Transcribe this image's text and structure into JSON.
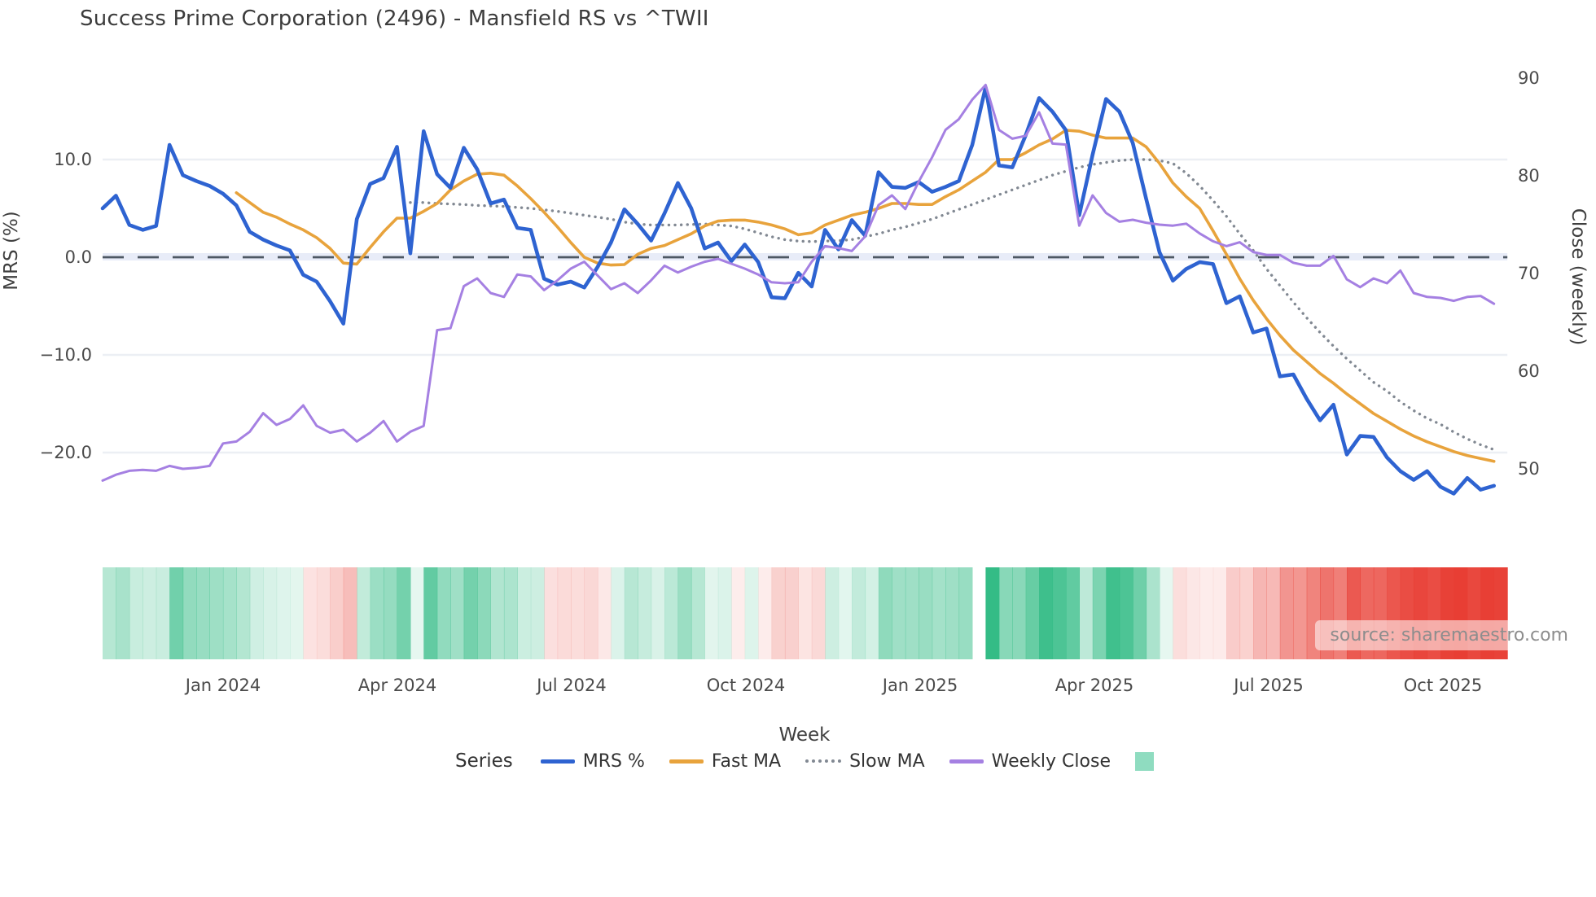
{
  "title": "Success Prime Corporation (2496) - Mansfield RS vs ^TWII",
  "left_axis": {
    "label": "MRS (%)",
    "ticks": [
      "10.0",
      "0.0",
      "−10.0",
      "−20.0"
    ],
    "tick_values": [
      10,
      0,
      -10,
      -20
    ]
  },
  "right_axis": {
    "label": "Close (weekly)",
    "ticks": [
      "90",
      "80",
      "70",
      "60",
      "50"
    ],
    "tick_values": [
      90,
      80,
      70,
      60,
      50
    ]
  },
  "x_axis": {
    "label": "Week",
    "ticks": [
      "Jan 2024",
      "Apr 2024",
      "Jul 2024",
      "Oct 2024",
      "Jan 2025",
      "Apr 2025",
      "Jul 2025",
      "Oct 2025"
    ]
  },
  "legend": {
    "title": "Series",
    "heatmap_swatch_color": "#8fdcc0"
  },
  "source": "source: sharemaestro.com",
  "colors": {
    "mrs": "#2e63d1",
    "fast_ma": "#e8a33c",
    "slow_ma": "#818892",
    "weekly_close": "#a580e2",
    "zero_dash": "#4e5864",
    "grid": "#eceff4",
    "zero_band": "#e8ecf8",
    "heat_positive": "#34bc86",
    "heat_negative": "#e83e34",
    "title_text": "#3c3c3c"
  },
  "chart_data": {
    "type": "line",
    "x_unit": "week",
    "n_weeks": 105,
    "x_range_note": "weekly points from Nov 2023 to Nov 2025",
    "x_tick_labels": [
      "Jan 2024",
      "Apr 2024",
      "Jul 2024",
      "Oct 2024",
      "Jan 2025",
      "Apr 2025",
      "Jul 2025",
      "Oct 2025"
    ],
    "left_ylim": [
      -27,
      19
    ],
    "right_ylim": [
      45,
      91
    ],
    "grid": "horizontal-light",
    "zero_line": {
      "axis": "left",
      "value": 0,
      "style": "dashed"
    },
    "legend_position": "bottom-center",
    "series": [
      {
        "name": "MRS %",
        "axis": "left",
        "style": "solid",
        "color": "#2e63d1",
        "width": 4.6,
        "values": [
          5.0,
          6.3,
          3.3,
          2.8,
          3.2,
          11.5,
          8.4,
          7.8,
          7.3,
          6.5,
          5.3,
          2.6,
          1.8,
          1.2,
          0.7,
          -1.8,
          -2.5,
          -4.5,
          -6.8,
          3.9,
          7.5,
          8.1,
          11.3,
          0.4,
          12.9,
          8.5,
          7.1,
          11.2,
          9.0,
          5.5,
          5.9,
          3.0,
          2.8,
          -2.2,
          -2.8,
          -2.5,
          -3.1,
          -1.0,
          1.5,
          4.9,
          3.4,
          1.7,
          4.5,
          7.6,
          5.0,
          0.9,
          1.5,
          -0.4,
          1.3,
          -0.5,
          -4.1,
          -4.2,
          -1.6,
          -3.0,
          2.8,
          0.8,
          3.8,
          2.2,
          8.7,
          7.2,
          7.1,
          7.7,
          6.7,
          7.2,
          7.8,
          11.5,
          17.4,
          9.4,
          9.2,
          12.5,
          16.3,
          14.9,
          13.0,
          4.3,
          10.5,
          16.2,
          14.9,
          11.7,
          6.0,
          0.5,
          -2.4,
          -1.2,
          -0.5,
          -0.7,
          -4.7,
          -4.0,
          -7.7,
          -7.3,
          -12.2,
          -12.0,
          -14.5,
          -16.7,
          -15.1,
          -20.2,
          -18.3,
          -18.4,
          -20.5,
          -21.9,
          -22.8,
          -21.9,
          -23.5,
          -24.2,
          -22.6,
          -23.8,
          -23.4
        ]
      },
      {
        "name": "Fast MA",
        "axis": "left",
        "style": "solid",
        "color": "#e8a33c",
        "width": 3.6,
        "values": [
          null,
          null,
          null,
          null,
          null,
          null,
          null,
          null,
          null,
          null,
          6.6,
          5.6,
          4.6,
          4.1,
          3.4,
          2.8,
          2.0,
          0.9,
          -0.6,
          -0.7,
          1.0,
          2.6,
          4.0,
          4.0,
          4.7,
          5.5,
          6.9,
          7.8,
          8.5,
          8.6,
          8.4,
          7.3,
          6.0,
          4.6,
          3.1,
          1.5,
          0.0,
          -0.6,
          -0.8,
          -0.75,
          0.3,
          0.9,
          1.2,
          1.8,
          2.4,
          3.2,
          3.7,
          3.8,
          3.8,
          3.6,
          3.3,
          2.9,
          2.3,
          2.5,
          3.3,
          3.8,
          4.3,
          4.6,
          5.0,
          5.5,
          5.5,
          5.4,
          5.4,
          6.2,
          6.9,
          7.8,
          8.7,
          10.0,
          10.0,
          10.7,
          11.5,
          12.1,
          13.0,
          12.9,
          12.5,
          12.2,
          12.2,
          12.2,
          11.3,
          9.6,
          7.6,
          6.2,
          5.0,
          2.7,
          0.3,
          -2.2,
          -4.4,
          -6.3,
          -8.0,
          -9.5,
          -10.7,
          -11.9,
          -12.9,
          -14.0,
          -15.0,
          -16.0,
          -16.8,
          -17.6,
          -18.3,
          -18.9,
          -19.4,
          -19.9,
          -20.3,
          -20.6,
          -20.9
        ]
      },
      {
        "name": "Slow MA",
        "axis": "left",
        "style": "dotted",
        "color": "#818892",
        "width": 3.4,
        "values": [
          null,
          null,
          null,
          null,
          null,
          null,
          null,
          null,
          null,
          null,
          null,
          null,
          null,
          null,
          null,
          null,
          null,
          null,
          null,
          null,
          null,
          null,
          null,
          5.6,
          5.6,
          5.5,
          5.45,
          5.4,
          5.3,
          5.25,
          5.2,
          5.1,
          5.0,
          4.85,
          4.7,
          4.5,
          4.3,
          4.1,
          3.9,
          3.6,
          3.4,
          3.3,
          3.3,
          3.3,
          3.35,
          3.4,
          3.3,
          3.2,
          2.9,
          2.5,
          2.1,
          1.8,
          1.65,
          1.6,
          1.65,
          1.7,
          1.8,
          2.1,
          2.4,
          2.8,
          3.1,
          3.5,
          3.9,
          4.4,
          4.9,
          5.4,
          5.9,
          6.4,
          6.9,
          7.4,
          7.9,
          8.4,
          8.8,
          9.2,
          9.5,
          9.7,
          9.9,
          10.0,
          10.0,
          9.9,
          9.6,
          8.6,
          7.3,
          5.8,
          4.2,
          2.4,
          0.7,
          -1.2,
          -2.9,
          -4.6,
          -6.2,
          -7.7,
          -9.1,
          -10.4,
          -11.6,
          -12.8,
          -13.7,
          -14.8,
          -15.7,
          -16.5,
          -17.1,
          -17.9,
          -18.6,
          -19.2,
          -19.7
        ]
      },
      {
        "name": "Weekly Close",
        "axis": "right",
        "style": "solid",
        "color": "#a580e2",
        "width": 3.0,
        "values": [
          48.8,
          49.4,
          49.8,
          49.9,
          49.8,
          50.3,
          50.0,
          50.1,
          50.3,
          52.6,
          52.8,
          53.8,
          55.7,
          54.5,
          55.1,
          56.5,
          54.4,
          53.7,
          54.0,
          52.8,
          53.7,
          54.9,
          52.8,
          53.8,
          54.4,
          64.2,
          64.4,
          68.7,
          69.5,
          68.0,
          67.6,
          69.9,
          69.7,
          68.3,
          69.3,
          70.5,
          71.2,
          69.8,
          68.4,
          69.0,
          68.0,
          69.3,
          70.8,
          70.1,
          70.7,
          71.2,
          71.5,
          71.0,
          70.5,
          69.9,
          69.1,
          69.0,
          69.1,
          71.2,
          72.8,
          72.6,
          72.3,
          73.8,
          77.0,
          78.0,
          76.6,
          79.4,
          81.9,
          84.7,
          85.8,
          87.8,
          89.3,
          84.7,
          83.8,
          84.1,
          86.5,
          83.3,
          83.2,
          74.9,
          78.0,
          76.2,
          75.3,
          75.5,
          75.2,
          75.0,
          74.9,
          75.1,
          74.1,
          73.3,
          72.8,
          73.2,
          72.2,
          71.9,
          71.9,
          71.1,
          70.8,
          70.8,
          71.8,
          69.4,
          68.6,
          69.5,
          69.0,
          70.3,
          68.0,
          67.6,
          67.5,
          67.2,
          67.6,
          67.7,
          66.9
        ]
      }
    ],
    "heatmap": {
      "source_series": "MRS %",
      "rule": "green when MRS positive, red when negative, intensity scales with magnitude",
      "gap_week_index": 65
    }
  }
}
